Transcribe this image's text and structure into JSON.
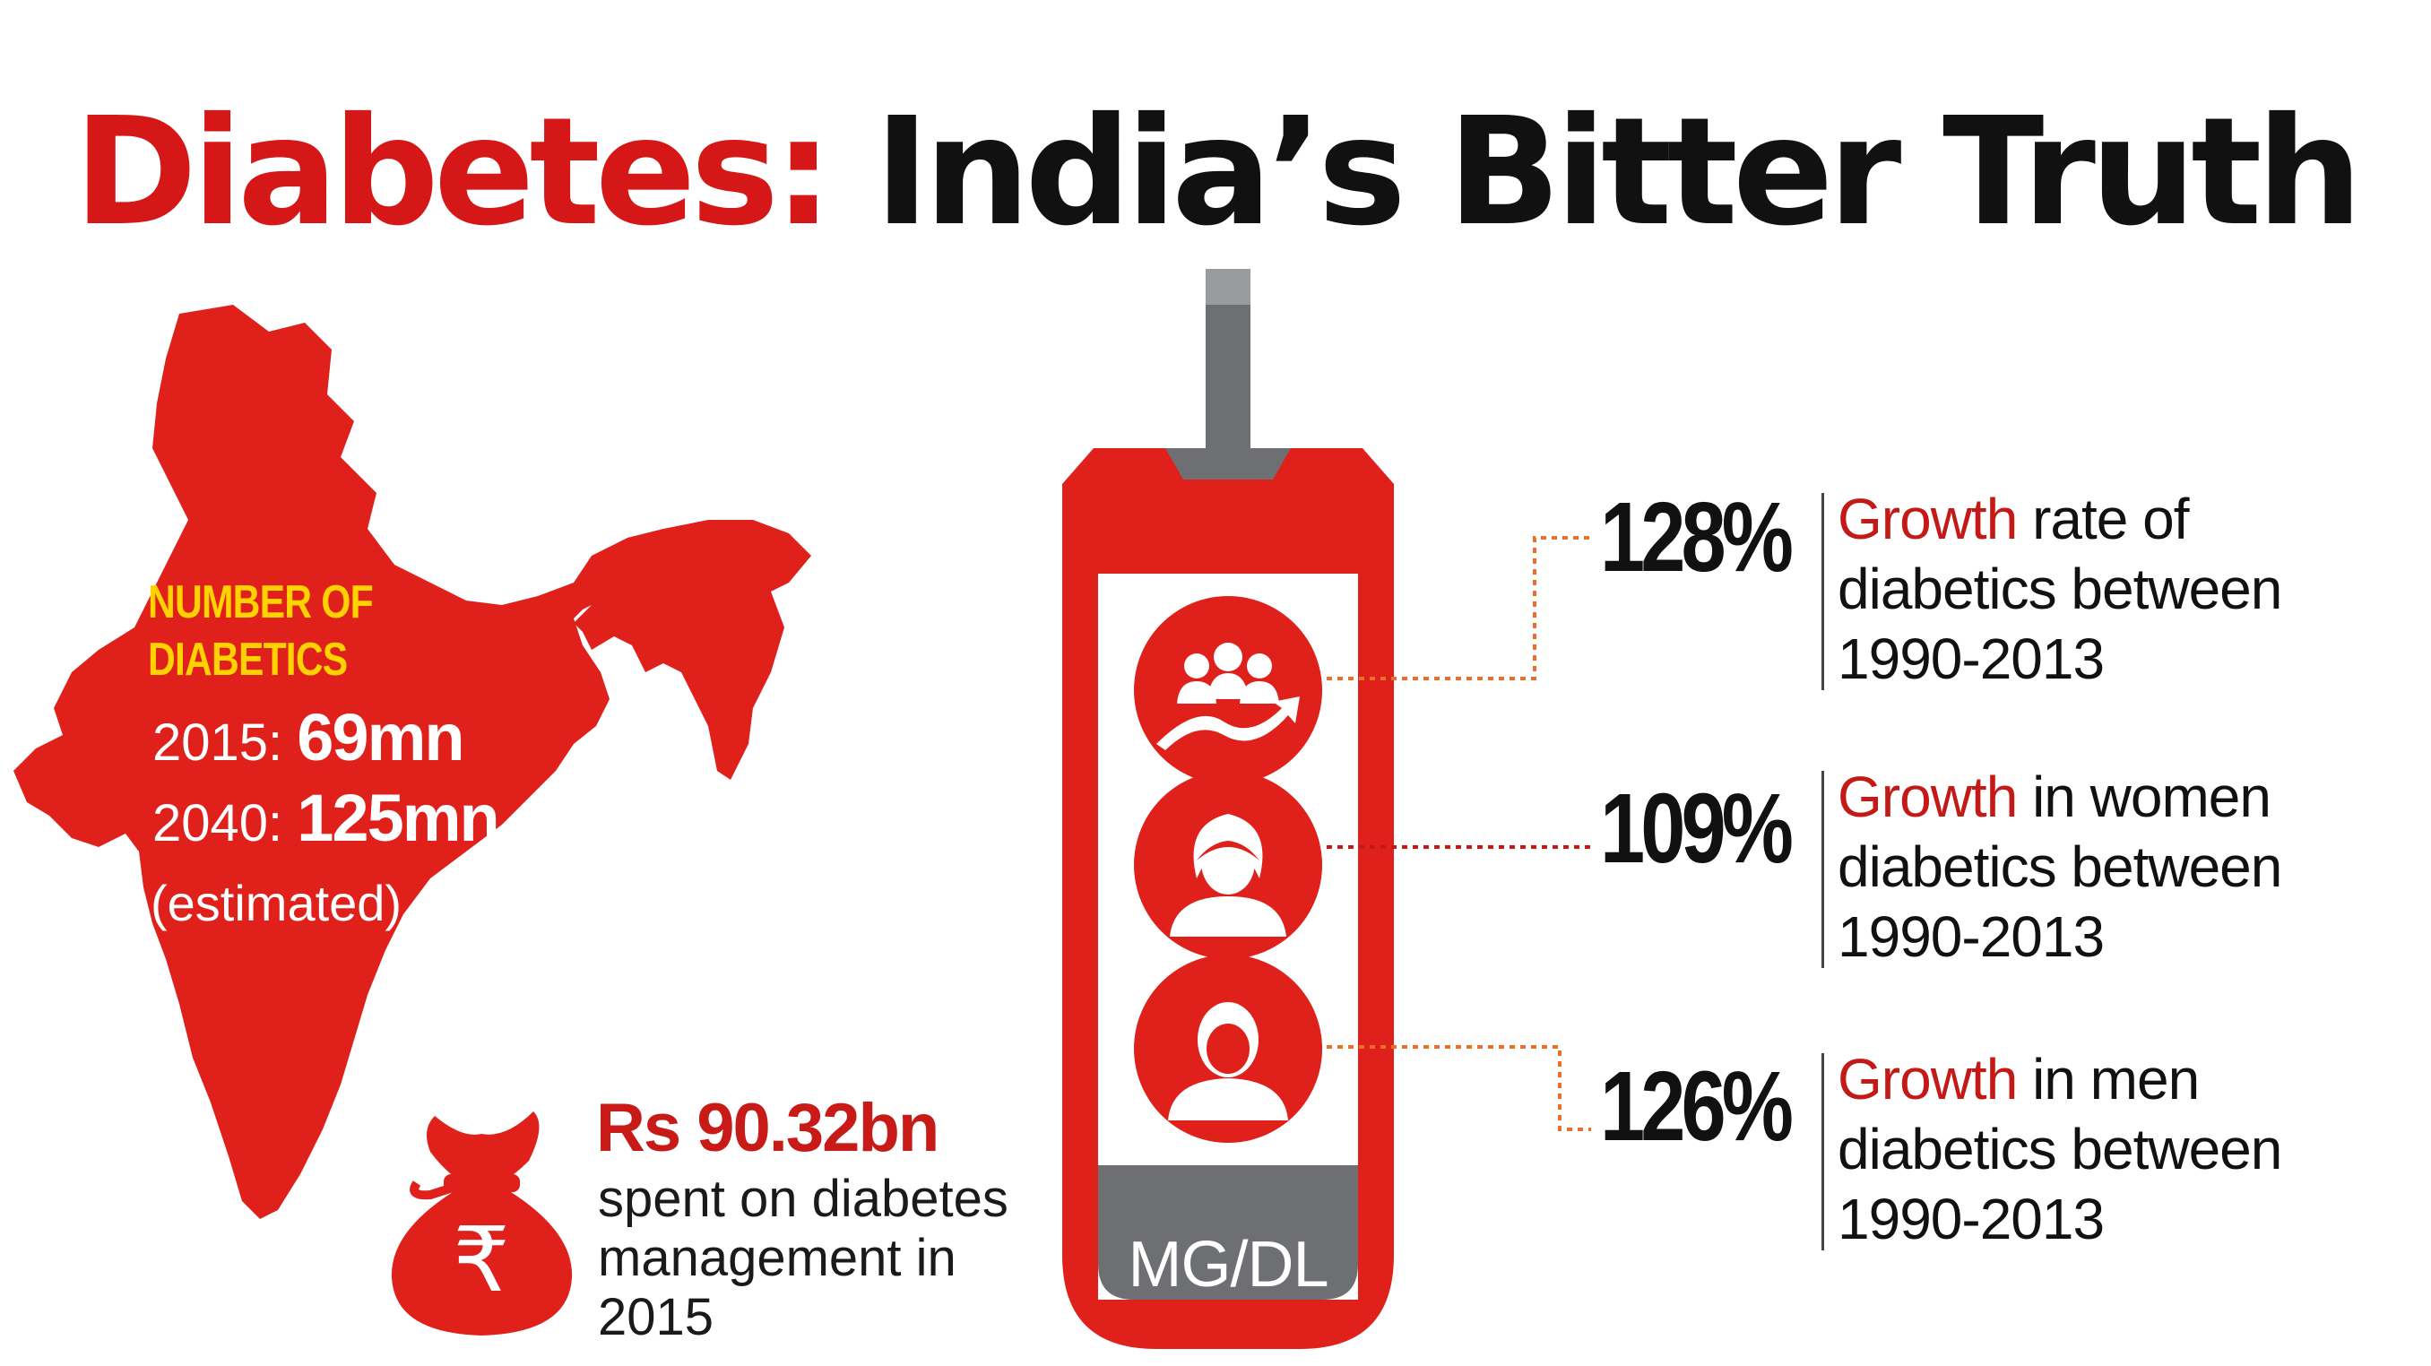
{
  "title": {
    "part1": "Diabetes:",
    "part2": "India’s Bitter Truth"
  },
  "map": {
    "heading_line1": "NUMBER OF",
    "heading_line2": "DIABETICS",
    "stats": [
      {
        "year": "2015:",
        "value": "69mn"
      },
      {
        "year": "2040:",
        "value": "125mn"
      }
    ],
    "note": "(estimated)"
  },
  "spending": {
    "amount": "Rs 90.32bn",
    "description": "spent on diabetes\nmanagement in\n2015",
    "currency_symbol": "₹"
  },
  "meter": {
    "label": "MG/DL"
  },
  "growth_stats": [
    {
      "percent": "128%",
      "highlight": "Growth",
      "line1_rest": " rate of",
      "line2": "diabetics between",
      "line3": "1990-2013",
      "icon": "group-growth-icon"
    },
    {
      "percent": "109%",
      "highlight": "Growth",
      "line1_rest": " in women",
      "line2": "diabetics between",
      "line3": "1990-2013",
      "icon": "woman-icon"
    },
    {
      "percent": "126%",
      "highlight": "Growth",
      "line1_rest": " in men",
      "line2": "diabetics between",
      "line3": "1990-2013",
      "icon": "man-icon"
    }
  ],
  "colors": {
    "brand_red": "#e0201b",
    "title_red": "#d51717",
    "highlight_red": "#c41a17",
    "map_yellow": "#ffd200",
    "meter_grey": "#6e6f72",
    "text_black": "#111111"
  }
}
